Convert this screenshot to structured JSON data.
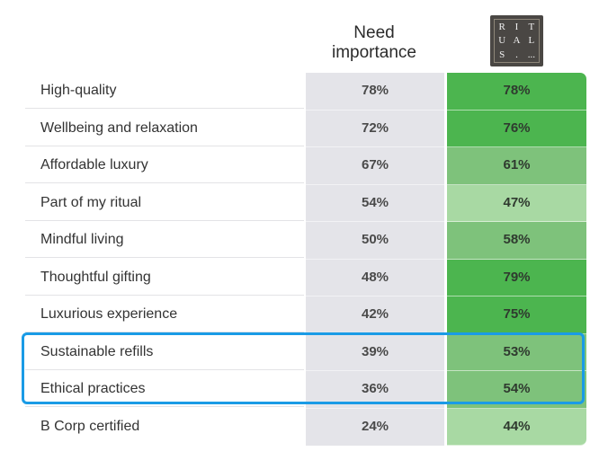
{
  "header": {
    "need_importance_line1": "Need",
    "need_importance_line2": "importance",
    "brand_logo_letters": [
      "R",
      "I",
      "T",
      "U",
      "A",
      "L",
      "S",
      ".",
      "..."
    ]
  },
  "colors": {
    "dark_green": "#4cb54f",
    "medium_green": "#7ec27b",
    "light_green": "#a8d9a3",
    "need_column": "#e4e4e9",
    "highlight_border": "#1a9be6"
  },
  "chart_data": {
    "type": "table",
    "columns": [
      "Need importance",
      "RITUALS"
    ],
    "rows": [
      {
        "label": "High-quality",
        "need": "78%",
        "brand": "78%",
        "brand_shade": "dark"
      },
      {
        "label": "Wellbeing and relaxation",
        "need": "72%",
        "brand": "76%",
        "brand_shade": "dark"
      },
      {
        "label": "Affordable luxury",
        "need": "67%",
        "brand": "61%",
        "brand_shade": "medium"
      },
      {
        "label": "Part of my ritual",
        "need": "54%",
        "brand": "47%",
        "brand_shade": "light"
      },
      {
        "label": "Mindful living",
        "need": "50%",
        "brand": "58%",
        "brand_shade": "medium"
      },
      {
        "label": "Thoughtful gifting",
        "need": "48%",
        "brand": "79%",
        "brand_shade": "dark"
      },
      {
        "label": "Luxurious experience",
        "need": "42%",
        "brand": "75%",
        "brand_shade": "dark"
      },
      {
        "label": "Sustainable refills",
        "need": "39%",
        "brand": "53%",
        "brand_shade": "medium",
        "highlighted": true
      },
      {
        "label": "Ethical practices",
        "need": "36%",
        "brand": "54%",
        "brand_shade": "medium",
        "highlighted": true
      },
      {
        "label": "B Corp certified",
        "need": "24%",
        "brand": "44%",
        "brand_shade": "light"
      }
    ]
  }
}
